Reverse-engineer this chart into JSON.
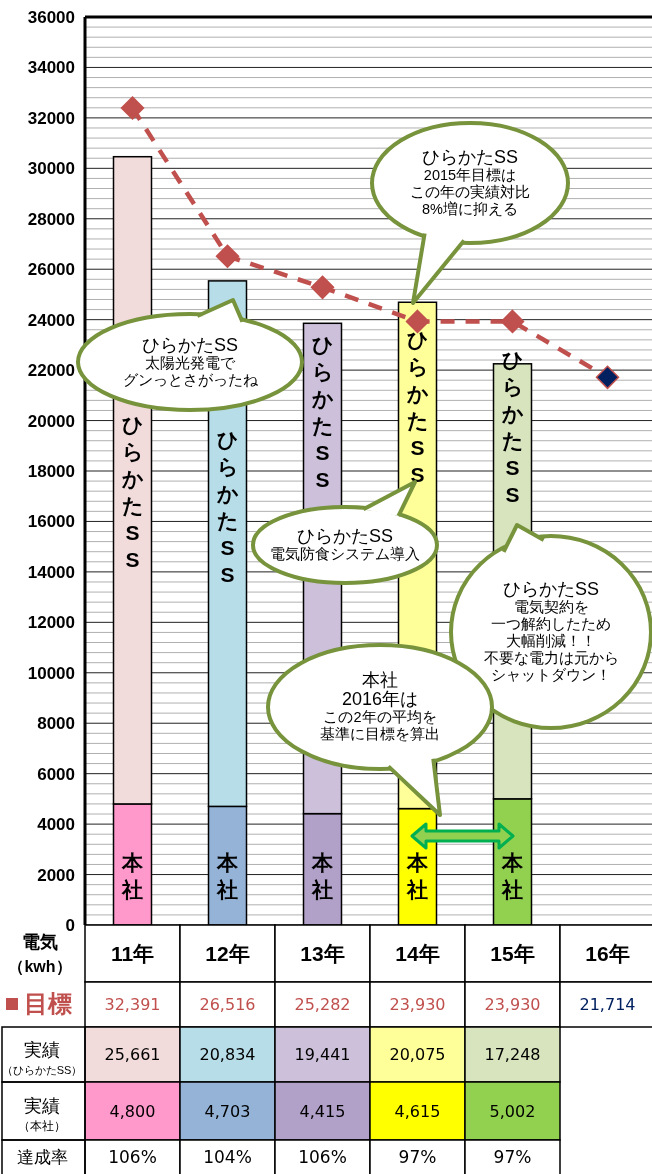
{
  "chart_data": {
    "type": "bar",
    "stacked": true,
    "ylabel": "電気（kwh）",
    "categories": [
      "11年",
      "12年",
      "13年",
      "14年",
      "15年",
      "16年"
    ],
    "ylim": [
      0,
      36000
    ],
    "yticks": [
      0,
      2000,
      4000,
      6000,
      8000,
      10000,
      12000,
      14000,
      16000,
      18000,
      20000,
      22000,
      24000,
      26000,
      28000,
      30000,
      32000,
      34000,
      36000
    ],
    "grid": "y",
    "legend": "bottom left",
    "series": [
      {
        "name": "本社",
        "values": [
          4800,
          4703,
          4415,
          4615,
          5002,
          null
        ],
        "colors": [
          "#ff99cc",
          "#95b3d7",
          "#b1a0c7",
          "#ffff00",
          "#92d050",
          null
        ],
        "value_labels": [
          "4,800",
          "4,703",
          "4,415",
          "4,615",
          "5,002",
          null
        ]
      },
      {
        "name": "ひらかたSS",
        "values": [
          25661,
          20834,
          19441,
          20075,
          17248,
          null
        ],
        "colors": [
          "#f2dcdb",
          "#b7dde8",
          "#ccc0da",
          "#ffff99",
          "#d7e4bd",
          null
        ],
        "value_labels": [
          "25,661",
          "20,834",
          "19,441",
          "20,075",
          "17,248",
          null
        ]
      },
      {
        "name": "目標",
        "type": "line",
        "line_style": "dashed",
        "marker": "diamond",
        "color": "#c0504d",
        "colors": [
          "#c0504d",
          "#c0504d",
          "#c0504d",
          "#c0504d",
          "#c0504d",
          "#002060"
        ],
        "values": [
          32391,
          26516,
          25282,
          23930,
          23930,
          21714
        ],
        "value_labels": [
          "32,391",
          "26,516",
          "25,282",
          "23,930",
          "23,930",
          "21,714"
        ]
      }
    ],
    "annotations": [
      "ひらかたSS太陽光発電でグンっとさがったね",
      "ひらかたSS2015年目標はこの年の実績対比8%増に抑える",
      "ひらかたSS電気防食システム導入",
      "ひらかたSS電気契約を一つ解約したため大幅削減！！不要な電力は元からシャットダウン！",
      "本社2016年はこの2年の平均を基準に目標を算出",
      "実績（ひらかたSS）",
      "実績（本社）",
      "達成率",
      "106%",
      "104%",
      "106%",
      "97%",
      "97%"
    ]
  }
}
